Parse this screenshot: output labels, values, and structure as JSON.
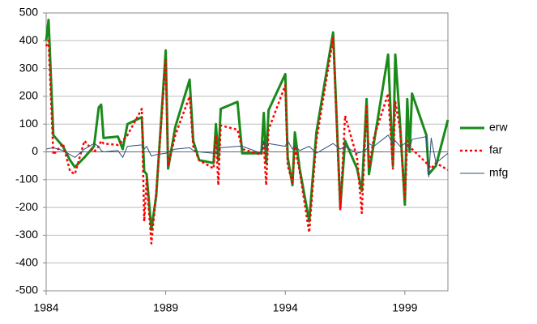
{
  "chart_data": {
    "type": "line",
    "x": [
      1984.0,
      1984.1,
      1984.3,
      1984.7,
      1985.0,
      1985.2,
      1985.6,
      1986.0,
      1986.2,
      1986.3,
      1986.4,
      1987.0,
      1987.2,
      1987.4,
      1988.0,
      1988.1,
      1988.2,
      1988.4,
      1988.6,
      1989.0,
      1989.1,
      1989.4,
      1990.0,
      1990.15,
      1990.4,
      1991.0,
      1991.1,
      1991.2,
      1991.3,
      1992.0,
      1992.2,
      1993.0,
      1993.1,
      1993.2,
      1993.3,
      1994.0,
      1994.1,
      1994.3,
      1994.4,
      1994.6,
      1995.0,
      1995.3,
      1996.0,
      1996.3,
      1996.5,
      1997.0,
      1997.2,
      1997.4,
      1997.5,
      1997.7,
      1998.3,
      1998.5,
      1998.6,
      1998.8,
      1999.0,
      1999.1,
      1999.2,
      1999.3,
      1999.9,
      2000.0,
      2000.1,
      2000.3,
      2000.8
    ],
    "series": [
      {
        "name": "erw",
        "color": "#1a8a1a",
        "values": [
          400,
          475,
          60,
          20,
          -30,
          -55,
          -20,
          20,
          160,
          170,
          50,
          55,
          10,
          100,
          125,
          -70,
          -80,
          -280,
          -160,
          365,
          -60,
          90,
          260,
          40,
          -30,
          -40,
          100,
          -30,
          155,
          180,
          -5,
          -5,
          140,
          -40,
          150,
          280,
          -20,
          -120,
          70,
          -60,
          -250,
          70,
          430,
          -200,
          40,
          -60,
          -140,
          190,
          -80,
          30,
          350,
          -50,
          350,
          100,
          -190,
          190,
          0,
          210,
          60,
          -80,
          -70,
          -50,
          115
        ]
      },
      {
        "name": "far",
        "color": "#ff0000",
        "dash": true,
        "values": [
          380,
          400,
          -10,
          30,
          -70,
          -80,
          40,
          0,
          20,
          40,
          30,
          25,
          40,
          60,
          155,
          -250,
          -100,
          -330,
          -150,
          330,
          -50,
          60,
          200,
          20,
          -30,
          -60,
          60,
          -120,
          95,
          80,
          10,
          -10,
          30,
          -120,
          80,
          240,
          -50,
          -110,
          20,
          -70,
          -290,
          40,
          410,
          -210,
          130,
          -20,
          -220,
          170,
          -60,
          50,
          210,
          -60,
          180,
          80,
          -170,
          40,
          20,
          10,
          -40,
          -50,
          -60,
          -40,
          -65
        ]
      },
      {
        "name": "mfg",
        "color": "#2f4f7f",
        "values": [
          10,
          12,
          15,
          5,
          -10,
          -20,
          10,
          30,
          20,
          5,
          0,
          5,
          -20,
          20,
          25,
          10,
          20,
          -15,
          -10,
          -5,
          0,
          10,
          15,
          5,
          0,
          -5,
          -5,
          10,
          15,
          20,
          20,
          -5,
          40,
          10,
          30,
          20,
          40,
          10,
          20,
          5,
          20,
          -5,
          30,
          10,
          20,
          -5,
          0,
          10,
          30,
          20,
          60,
          30,
          40,
          20,
          30,
          20,
          10,
          45,
          55,
          -90,
          50,
          -40,
          -5
        ]
      }
    ],
    "xlim": [
      1984,
      2000.8
    ],
    "xticks": [
      1984,
      1989,
      1994,
      1999
    ],
    "ylim": [
      -500,
      500
    ],
    "yticks": [
      -500,
      -400,
      -300,
      -200,
      -100,
      0,
      100,
      200,
      300,
      400,
      500
    ],
    "grid": true,
    "legend": "right"
  }
}
